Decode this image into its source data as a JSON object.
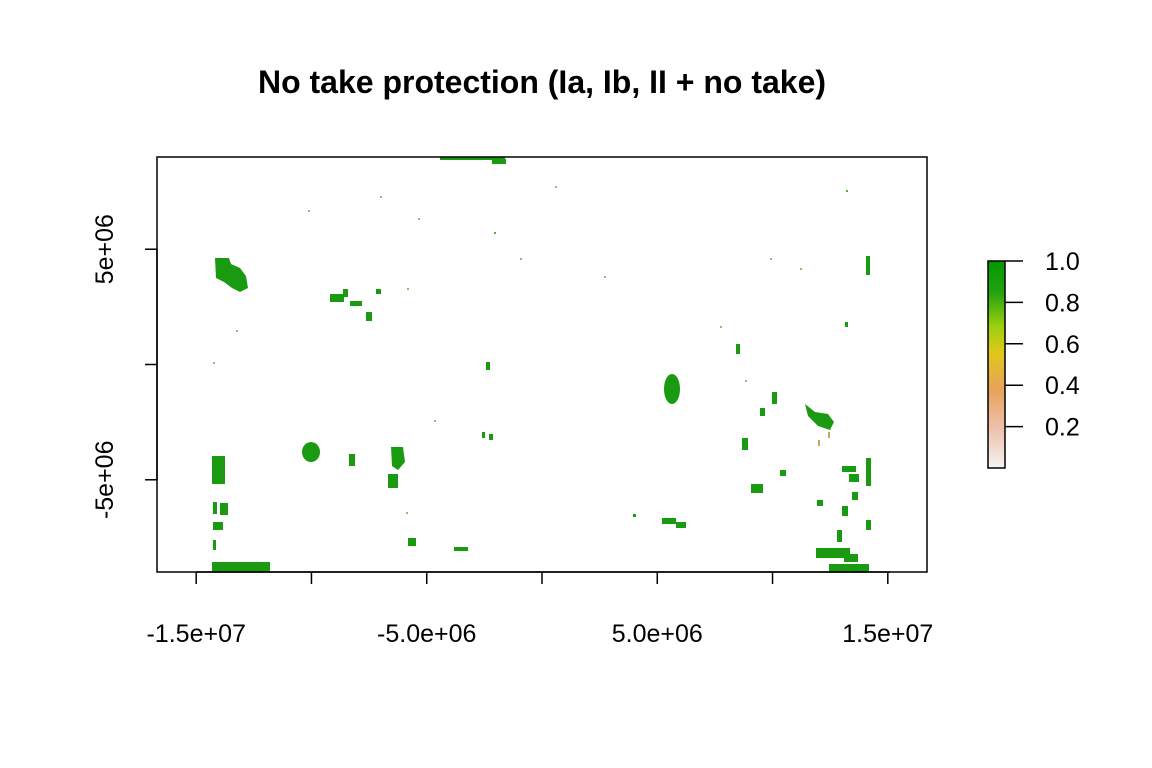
{
  "chart_data": {
    "type": "heatmap",
    "title": "No take protection (Ia, Ib, II + no take)",
    "x_ticks": [
      {
        "value": -15000000,
        "label": "-1.5e+07"
      },
      {
        "value": -10000000,
        "label": ""
      },
      {
        "value": -5000000,
        "label": "-5.0e+06"
      },
      {
        "value": 0,
        "label": ""
      },
      {
        "value": 5000000,
        "label": "5.0e+06"
      },
      {
        "value": 10000000,
        "label": ""
      },
      {
        "value": 15000000,
        "label": "1.5e+07"
      }
    ],
    "y_ticks": [
      {
        "value": 5000000,
        "label": "5e+06"
      },
      {
        "value": 0,
        "label": ""
      },
      {
        "value": -5000000,
        "label": "-5e+06"
      }
    ],
    "xlim": [
      -16700000,
      16700000
    ],
    "ylim": [
      -9000000,
      9000000
    ],
    "legend": {
      "position": "right",
      "range": [
        0,
        1
      ],
      "ticks": [
        {
          "value": 0.2,
          "label": "0.2"
        },
        {
          "value": 0.4,
          "label": "0.4"
        },
        {
          "value": 0.6,
          "label": "0.6"
        },
        {
          "value": 0.8,
          "label": "0.8"
        },
        {
          "value": 1.0,
          "label": "1.0"
        }
      ],
      "colors": [
        "#f2f2f2",
        "#eec3b0",
        "#e8a25a",
        "#e8c522",
        "#a7d211",
        "#1a9a10",
        "#00a600"
      ]
    }
  }
}
